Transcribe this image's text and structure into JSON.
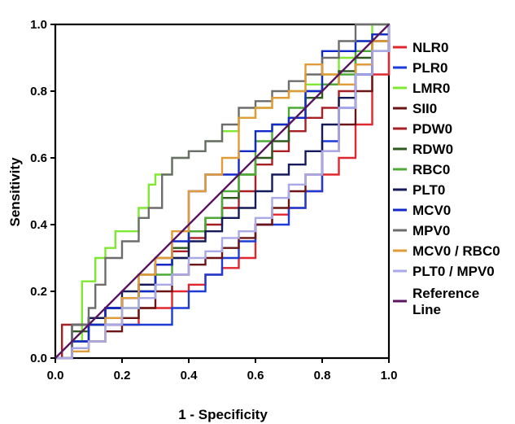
{
  "chart_data": {
    "type": "line",
    "title": "",
    "xlabel": "1 - Specificity",
    "ylabel": "Sensitivity",
    "xlim": [
      0.0,
      1.0
    ],
    "ylim": [
      0.0,
      1.0
    ],
    "xticks": [
      "0.0",
      "0.2",
      "0.4",
      "0.6",
      "0.8",
      "1.0"
    ],
    "yticks": [
      "0.0",
      "0.2",
      "0.4",
      "0.6",
      "0.8",
      "1.0"
    ],
    "legend_position": "right",
    "grid": false,
    "series": [
      {
        "name": "NLR0",
        "color": "#e0262e",
        "points": [
          [
            0,
            0
          ],
          [
            0.05,
            0.05
          ],
          [
            0.1,
            0.1
          ],
          [
            0.2,
            0.1
          ],
          [
            0.25,
            0.15
          ],
          [
            0.3,
            0.15
          ],
          [
            0.35,
            0.2
          ],
          [
            0.4,
            0.22
          ],
          [
            0.45,
            0.25
          ],
          [
            0.5,
            0.27
          ],
          [
            0.55,
            0.3
          ],
          [
            0.6,
            0.4
          ],
          [
            0.65,
            0.43
          ],
          [
            0.7,
            0.45
          ],
          [
            0.75,
            0.5
          ],
          [
            0.8,
            0.55
          ],
          [
            0.85,
            0.6
          ],
          [
            0.9,
            0.7
          ],
          [
            0.95,
            0.85
          ],
          [
            1,
            1
          ]
        ]
      },
      {
        "name": "PLR0",
        "color": "#1d3bd6",
        "points": [
          [
            0,
            0
          ],
          [
            0.05,
            0.05
          ],
          [
            0.1,
            0.1
          ],
          [
            0.2,
            0.1
          ],
          [
            0.3,
            0.1
          ],
          [
            0.35,
            0.15
          ],
          [
            0.4,
            0.2
          ],
          [
            0.45,
            0.25
          ],
          [
            0.5,
            0.3
          ],
          [
            0.55,
            0.35
          ],
          [
            0.6,
            0.4
          ],
          [
            0.7,
            0.45
          ],
          [
            0.75,
            0.5
          ],
          [
            0.8,
            0.65
          ],
          [
            0.85,
            0.75
          ],
          [
            0.9,
            0.85
          ],
          [
            0.95,
            0.92
          ],
          [
            1,
            1
          ]
        ]
      },
      {
        "name": "LMR0",
        "color": "#7fe832",
        "points": [
          [
            0,
            0
          ],
          [
            0.05,
            0.05
          ],
          [
            0.08,
            0.23
          ],
          [
            0.12,
            0.3
          ],
          [
            0.15,
            0.33
          ],
          [
            0.18,
            0.38
          ],
          [
            0.22,
            0.38
          ],
          [
            0.25,
            0.45
          ],
          [
            0.28,
            0.52
          ],
          [
            0.3,
            0.55
          ],
          [
            0.35,
            0.6
          ],
          [
            0.4,
            0.62
          ],
          [
            0.45,
            0.65
          ],
          [
            0.5,
            0.68
          ],
          [
            0.55,
            0.72
          ],
          [
            0.6,
            0.75
          ],
          [
            0.65,
            0.78
          ],
          [
            0.7,
            0.8
          ],
          [
            0.75,
            0.82
          ],
          [
            0.8,
            0.85
          ],
          [
            0.85,
            0.9
          ],
          [
            0.9,
            0.95
          ],
          [
            0.95,
            1
          ],
          [
            1,
            1
          ]
        ]
      },
      {
        "name": "SII0",
        "color": "#6b1414",
        "points": [
          [
            0,
            0
          ],
          [
            0.05,
            0.03
          ],
          [
            0.1,
            0.05
          ],
          [
            0.15,
            0.08
          ],
          [
            0.2,
            0.12
          ],
          [
            0.25,
            0.15
          ],
          [
            0.3,
            0.2
          ],
          [
            0.35,
            0.25
          ],
          [
            0.4,
            0.28
          ],
          [
            0.45,
            0.3
          ],
          [
            0.5,
            0.33
          ],
          [
            0.55,
            0.36
          ],
          [
            0.6,
            0.4
          ],
          [
            0.65,
            0.45
          ],
          [
            0.7,
            0.5
          ],
          [
            0.75,
            0.55
          ],
          [
            0.8,
            0.62
          ],
          [
            0.85,
            0.7
          ],
          [
            0.9,
            0.8
          ],
          [
            0.95,
            0.92
          ],
          [
            1,
            1
          ]
        ]
      },
      {
        "name": "PDW0",
        "color": "#a81f24",
        "points": [
          [
            0,
            0
          ],
          [
            0.02,
            0.1
          ],
          [
            0.05,
            0.1
          ],
          [
            0.1,
            0.12
          ],
          [
            0.15,
            0.15
          ],
          [
            0.2,
            0.18
          ],
          [
            0.25,
            0.22
          ],
          [
            0.3,
            0.28
          ],
          [
            0.35,
            0.32
          ],
          [
            0.4,
            0.36
          ],
          [
            0.45,
            0.4
          ],
          [
            0.5,
            0.45
          ],
          [
            0.55,
            0.5
          ],
          [
            0.6,
            0.58
          ],
          [
            0.65,
            0.62
          ],
          [
            0.7,
            0.68
          ],
          [
            0.75,
            0.72
          ],
          [
            0.8,
            0.75
          ],
          [
            0.85,
            0.8
          ],
          [
            0.9,
            0.88
          ],
          [
            0.95,
            0.95
          ],
          [
            1,
            1
          ]
        ]
      },
      {
        "name": "RDW0",
        "color": "#2e5a1e",
        "points": [
          [
            0,
            0
          ],
          [
            0.05,
            0.08
          ],
          [
            0.1,
            0.12
          ],
          [
            0.15,
            0.15
          ],
          [
            0.2,
            0.18
          ],
          [
            0.25,
            0.25
          ],
          [
            0.3,
            0.3
          ],
          [
            0.35,
            0.33
          ],
          [
            0.4,
            0.38
          ],
          [
            0.45,
            0.42
          ],
          [
            0.5,
            0.48
          ],
          [
            0.55,
            0.55
          ],
          [
            0.6,
            0.6
          ],
          [
            0.65,
            0.65
          ],
          [
            0.7,
            0.72
          ],
          [
            0.75,
            0.78
          ],
          [
            0.8,
            0.82
          ],
          [
            0.85,
            0.86
          ],
          [
            0.9,
            0.9
          ],
          [
            0.95,
            0.95
          ],
          [
            1,
            1
          ]
        ]
      },
      {
        "name": "RBC0",
        "color": "#4caa35",
        "points": [
          [
            0,
            0
          ],
          [
            0.05,
            0.05
          ],
          [
            0.1,
            0.1
          ],
          [
            0.15,
            0.12
          ],
          [
            0.2,
            0.15
          ],
          [
            0.25,
            0.2
          ],
          [
            0.3,
            0.25
          ],
          [
            0.35,
            0.3
          ],
          [
            0.4,
            0.38
          ],
          [
            0.45,
            0.42
          ],
          [
            0.5,
            0.5
          ],
          [
            0.55,
            0.55
          ],
          [
            0.6,
            0.65
          ],
          [
            0.65,
            0.7
          ],
          [
            0.7,
            0.75
          ],
          [
            0.75,
            0.8
          ],
          [
            0.8,
            0.82
          ],
          [
            0.85,
            0.85
          ],
          [
            0.9,
            0.92
          ],
          [
            0.95,
            0.97
          ],
          [
            1,
            1
          ]
        ]
      },
      {
        "name": "PLT0",
        "color": "#141a5a",
        "points": [
          [
            0,
            0
          ],
          [
            0.05,
            0.1
          ],
          [
            0.1,
            0.12
          ],
          [
            0.15,
            0.15
          ],
          [
            0.2,
            0.2
          ],
          [
            0.25,
            0.22
          ],
          [
            0.3,
            0.28
          ],
          [
            0.35,
            0.3
          ],
          [
            0.4,
            0.35
          ],
          [
            0.45,
            0.38
          ],
          [
            0.5,
            0.42
          ],
          [
            0.55,
            0.45
          ],
          [
            0.6,
            0.5
          ],
          [
            0.65,
            0.55
          ],
          [
            0.7,
            0.58
          ],
          [
            0.75,
            0.62
          ],
          [
            0.8,
            0.7
          ],
          [
            0.85,
            0.78
          ],
          [
            0.9,
            0.85
          ],
          [
            0.95,
            0.92
          ],
          [
            1,
            1
          ]
        ]
      },
      {
        "name": "MCV0",
        "color": "#1228c9",
        "points": [
          [
            0,
            0
          ],
          [
            0.05,
            0.05
          ],
          [
            0.1,
            0.1
          ],
          [
            0.15,
            0.15
          ],
          [
            0.2,
            0.18
          ],
          [
            0.25,
            0.2
          ],
          [
            0.3,
            0.28
          ],
          [
            0.35,
            0.35
          ],
          [
            0.4,
            0.5
          ],
          [
            0.45,
            0.55
          ],
          [
            0.5,
            0.55
          ],
          [
            0.55,
            0.62
          ],
          [
            0.6,
            0.68
          ],
          [
            0.65,
            0.7
          ],
          [
            0.7,
            0.72
          ],
          [
            0.75,
            0.8
          ],
          [
            0.8,
            0.92
          ],
          [
            0.85,
            0.92
          ],
          [
            0.9,
            0.95
          ],
          [
            0.95,
            0.97
          ],
          [
            1,
            1
          ]
        ]
      },
      {
        "name": "MPV0",
        "color": "#6d6d6d",
        "points": [
          [
            0,
            0
          ],
          [
            0.05,
            0.1
          ],
          [
            0.1,
            0.15
          ],
          [
            0.12,
            0.22
          ],
          [
            0.15,
            0.3
          ],
          [
            0.2,
            0.35
          ],
          [
            0.25,
            0.42
          ],
          [
            0.28,
            0.45
          ],
          [
            0.32,
            0.55
          ],
          [
            0.35,
            0.6
          ],
          [
            0.4,
            0.62
          ],
          [
            0.45,
            0.65
          ],
          [
            0.5,
            0.7
          ],
          [
            0.55,
            0.75
          ],
          [
            0.6,
            0.77
          ],
          [
            0.65,
            0.8
          ],
          [
            0.7,
            0.83
          ],
          [
            0.75,
            0.85
          ],
          [
            0.8,
            0.9
          ],
          [
            0.85,
            0.95
          ],
          [
            0.9,
            1
          ],
          [
            0.95,
            1
          ],
          [
            1,
            1
          ]
        ]
      },
      {
        "name": "MCV0 / RBC0",
        "color": "#e29b39",
        "points": [
          [
            0,
            0
          ],
          [
            0.05,
            0.02
          ],
          [
            0.1,
            0.05
          ],
          [
            0.15,
            0.12
          ],
          [
            0.2,
            0.18
          ],
          [
            0.25,
            0.25
          ],
          [
            0.3,
            0.3
          ],
          [
            0.35,
            0.38
          ],
          [
            0.4,
            0.5
          ],
          [
            0.45,
            0.55
          ],
          [
            0.5,
            0.6
          ],
          [
            0.55,
            0.72
          ],
          [
            0.6,
            0.75
          ],
          [
            0.65,
            0.78
          ],
          [
            0.7,
            0.8
          ],
          [
            0.75,
            0.88
          ],
          [
            0.8,
            0.85
          ],
          [
            0.85,
            0.82
          ],
          [
            0.9,
            0.88
          ],
          [
            0.95,
            0.95
          ],
          [
            1,
            1
          ]
        ]
      },
      {
        "name": "PLT0 / MPV0",
        "color": "#a9a9e8",
        "points": [
          [
            0,
            0
          ],
          [
            0.05,
            0.03
          ],
          [
            0.1,
            0.05
          ],
          [
            0.15,
            0.1
          ],
          [
            0.2,
            0.15
          ],
          [
            0.25,
            0.18
          ],
          [
            0.3,
            0.22
          ],
          [
            0.35,
            0.25
          ],
          [
            0.4,
            0.3
          ],
          [
            0.45,
            0.32
          ],
          [
            0.5,
            0.36
          ],
          [
            0.55,
            0.38
          ],
          [
            0.6,
            0.42
          ],
          [
            0.65,
            0.48
          ],
          [
            0.7,
            0.52
          ],
          [
            0.75,
            0.55
          ],
          [
            0.8,
            0.62
          ],
          [
            0.85,
            0.75
          ],
          [
            0.9,
            0.85
          ],
          [
            0.95,
            0.92
          ],
          [
            1,
            1
          ]
        ]
      },
      {
        "name": "Reference Line",
        "color": "#5a1760",
        "points": [
          [
            0,
            0
          ],
          [
            1,
            1
          ]
        ]
      }
    ]
  }
}
